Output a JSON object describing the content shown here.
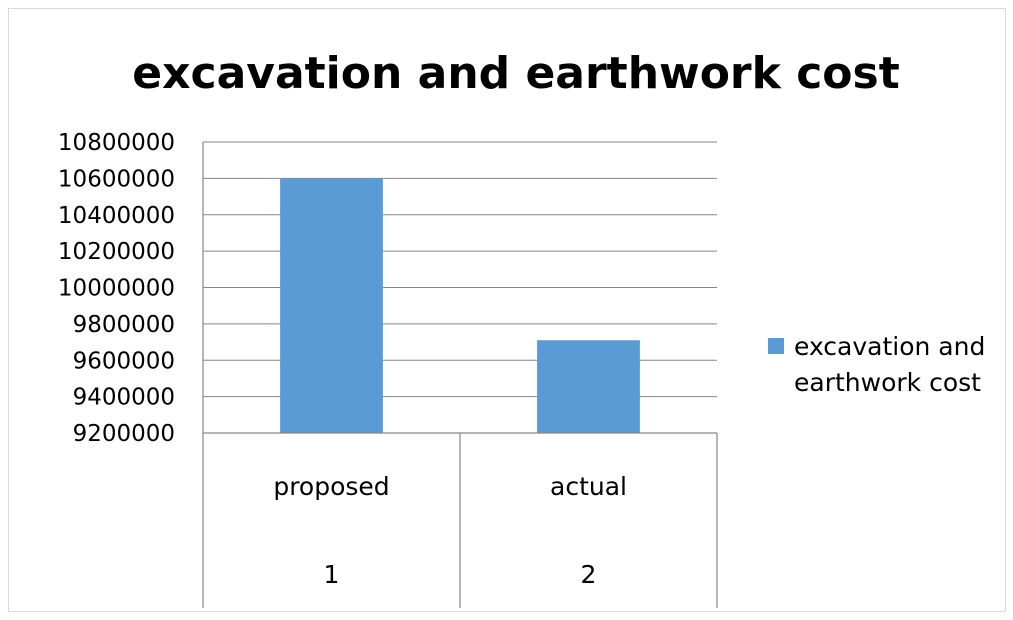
{
  "chart_data": {
    "type": "bar",
    "title": "excavation and earthwork cost",
    "categories": [
      {
        "label": "proposed",
        "sublabel": "1"
      },
      {
        "label": "actual",
        "sublabel": "2"
      }
    ],
    "series": [
      {
        "name_lines": [
          "excavation and",
          "earthwork cost"
        ],
        "color": "#5b9bd5",
        "values": [
          10600000,
          9710000
        ]
      }
    ],
    "ylim": [
      9200000,
      10800000
    ],
    "yticks": [
      10800000,
      10600000,
      10400000,
      10200000,
      10000000,
      9800000,
      9600000,
      9400000,
      9200000
    ],
    "grid": true,
    "legend": "right"
  }
}
